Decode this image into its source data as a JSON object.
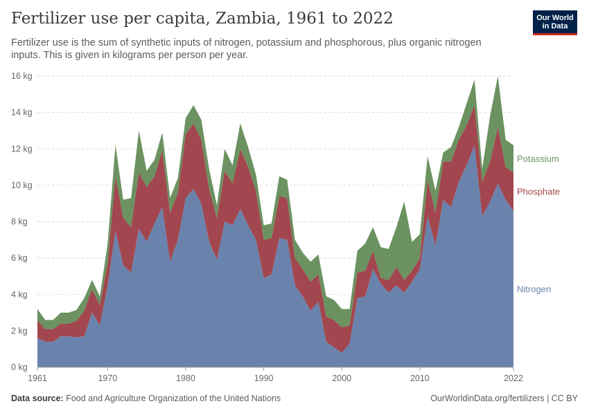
{
  "header": {
    "title": "Fertilizer use per capita, Zambia, 1961 to 2022",
    "subtitle": "Fertilizer use is the sum of synthetic inputs of nitrogen, potassium and phosphorous, plus organic nitrogen inputs. This is given in kilograms per person per year."
  },
  "logo": {
    "line1": "Our World",
    "line2": "in Data"
  },
  "footer": {
    "source_label": "Data source:",
    "source_text": "Food and Agriculture Organization of the United Nations",
    "right_text": "OurWorldinData.org/fertilizers | CC BY"
  },
  "colors": {
    "nitrogen": "#6a83ac",
    "phosphate": "#a2474f",
    "potassium": "#6b9260",
    "grid": "#dddddd",
    "axis_text": "#666666"
  },
  "chart_data": {
    "type": "area",
    "stacked": true,
    "title": "Fertilizer use per capita, Zambia, 1961 to 2022",
    "ylim": [
      0,
      16
    ],
    "xlim": [
      1961,
      2022
    ],
    "y_ticks": [
      0,
      2,
      4,
      6,
      8,
      10,
      12,
      14,
      16
    ],
    "y_tick_labels": [
      "0 kg",
      "2 kg",
      "4 kg",
      "6 kg",
      "8 kg",
      "10 kg",
      "12 kg",
      "14 kg",
      "16 kg"
    ],
    "x_ticks": [
      1961,
      1970,
      1980,
      1990,
      2000,
      2010,
      2022
    ],
    "x_tick_labels": [
      "1961",
      "1970",
      "1980",
      "1990",
      "2000",
      "2010",
      "2022"
    ],
    "grid": "horizontal dashed",
    "legend": "labels at right end of series",
    "x": [
      1961,
      1962,
      1963,
      1964,
      1965,
      1966,
      1967,
      1968,
      1969,
      1970,
      1971,
      1972,
      1973,
      1974,
      1975,
      1976,
      1977,
      1978,
      1979,
      1980,
      1981,
      1982,
      1983,
      1984,
      1985,
      1986,
      1987,
      1988,
      1989,
      1990,
      1991,
      1992,
      1993,
      1994,
      1995,
      1996,
      1997,
      1998,
      1999,
      2000,
      2001,
      2002,
      2003,
      2004,
      2005,
      2006,
      2007,
      2008,
      2009,
      2010,
      2011,
      2012,
      2013,
      2014,
      2015,
      2016,
      2017,
      2018,
      2019,
      2020,
      2021,
      2022
    ],
    "series": [
      {
        "name": "Nitrogen",
        "values": [
          1.6,
          1.4,
          1.4,
          1.7,
          1.7,
          1.65,
          1.7,
          3.0,
          2.3,
          4.5,
          7.5,
          5.6,
          5.2,
          7.6,
          6.9,
          7.9,
          8.8,
          5.8,
          7.0,
          9.3,
          9.8,
          9.0,
          6.9,
          5.9,
          8.0,
          7.8,
          8.7,
          7.8,
          7.0,
          4.9,
          5.1,
          7.1,
          7.0,
          4.5,
          3.9,
          3.1,
          3.6,
          1.4,
          1.1,
          0.8,
          1.3,
          3.8,
          3.9,
          5.4,
          4.6,
          4.1,
          4.5,
          4.1,
          4.7,
          5.4,
          8.3,
          6.7,
          9.2,
          8.8,
          10.2,
          11.1,
          12.2,
          8.3,
          9.1,
          10.1,
          9.2,
          8.6
        ]
      },
      {
        "name": "Phosphate",
        "values": [
          1.0,
          0.7,
          0.7,
          0.7,
          0.7,
          0.9,
          1.4,
          1.3,
          1.1,
          1.2,
          3.0,
          2.6,
          2.5,
          3.1,
          3.0,
          2.6,
          3.1,
          2.7,
          2.6,
          3.5,
          3.6,
          3.5,
          2.9,
          2.3,
          2.8,
          2.3,
          3.3,
          3.2,
          2.7,
          2.1,
          2.0,
          2.3,
          2.3,
          1.5,
          1.5,
          1.6,
          1.5,
          1.4,
          1.5,
          1.4,
          1.0,
          1.4,
          1.4,
          1.0,
          0.3,
          0.7,
          1.0,
          0.7,
          0.6,
          0.6,
          2.0,
          1.8,
          2.1,
          2.5,
          2.3,
          2.2,
          2.2,
          1.9,
          2.2,
          3.1,
          1.8,
          2.1
        ]
      },
      {
        "name": "Potassium",
        "values": [
          0.6,
          0.5,
          0.5,
          0.6,
          0.6,
          0.6,
          0.7,
          0.5,
          0.5,
          1.1,
          1.7,
          1.0,
          1.6,
          2.3,
          0.9,
          0.9,
          1.0,
          0.8,
          0.8,
          0.9,
          1.0,
          1.1,
          1.1,
          0.7,
          1.2,
          1.0,
          1.4,
          1.1,
          0.9,
          0.8,
          0.8,
          1.1,
          1.0,
          1.0,
          0.9,
          1.1,
          1.1,
          1.1,
          1.1,
          1.0,
          0.9,
          1.2,
          1.5,
          1.3,
          1.7,
          1.7,
          2.2,
          4.3,
          1.6,
          1.3,
          1.3,
          1.2,
          0.5,
          0.8,
          0.7,
          1.2,
          1.4,
          0.7,
          2.5,
          2.8,
          1.5,
          1.5
        ]
      }
    ],
    "series_labels": [
      "Potassium",
      "Phosphate",
      "Nitrogen"
    ]
  }
}
